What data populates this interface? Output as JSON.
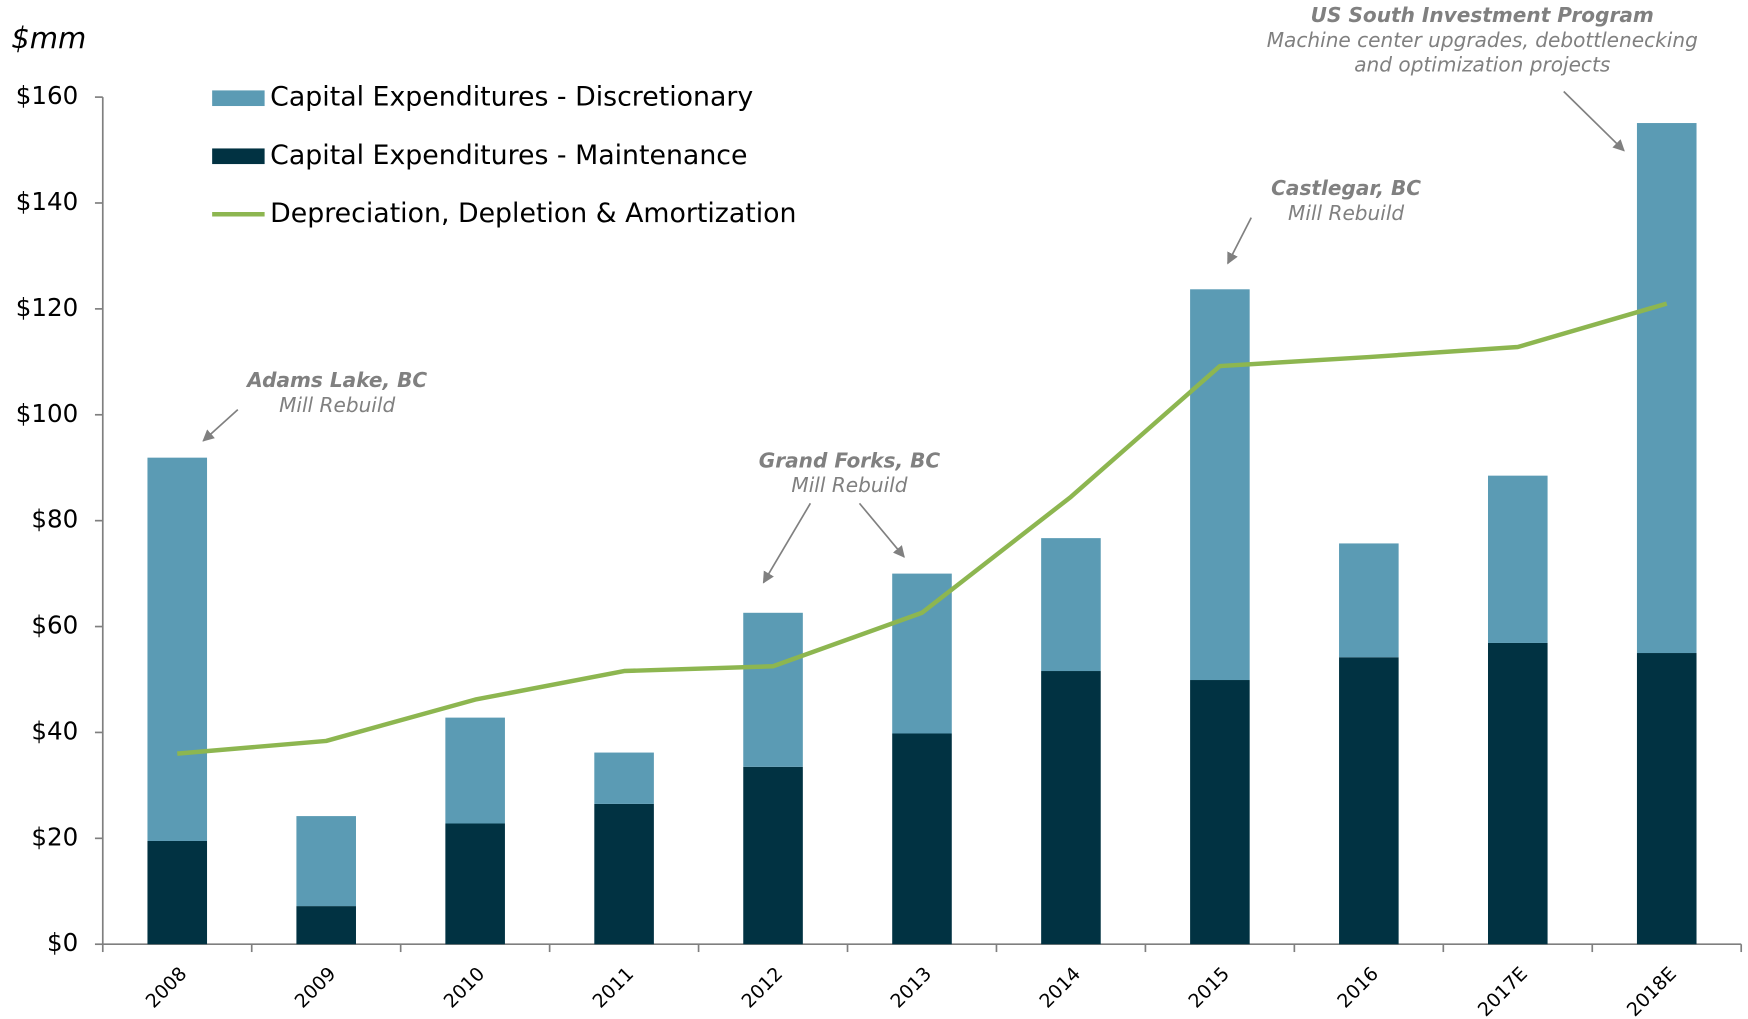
{
  "chart_data": {
    "type": "stacked_bar_line",
    "y_axis_label": "$mm",
    "categories": [
      "2008",
      "2009",
      "2010",
      "2011",
      "2012",
      "2013",
      "2014",
      "2015",
      "2016",
      "2017E",
      "2018E"
    ],
    "series": [
      {
        "name": "Capital Expenditures - Discretionary",
        "color": "#5b9bb4",
        "kind": "bar",
        "values": [
          72.4,
          17,
          20,
          9.7,
          29.1,
          30.2,
          25.1,
          73.8,
          21.5,
          31.6,
          100.1
        ]
      },
      {
        "name": "Capital Expenditures - Maintenance",
        "color": "#013242",
        "kind": "bar",
        "values": [
          19.5,
          7.2,
          22.8,
          26.5,
          33.5,
          39.8,
          51.6,
          49.9,
          54.2,
          56.9,
          55
        ]
      },
      {
        "name": "Depreciation, Depletion & Amortization",
        "color": "#8db650",
        "kind": "line",
        "values": [
          36,
          38.4,
          46.2,
          51.6,
          52.5,
          62.6,
          84.5,
          109.2,
          110.9,
          112.8,
          121
        ]
      }
    ],
    "ylim": [
      0,
      160
    ],
    "yticks": [
      {
        "value": 0,
        "label": "$0"
      },
      {
        "value": 20,
        "label": "$20"
      },
      {
        "value": 40,
        "label": "$40"
      },
      {
        "value": 60,
        "label": "$60"
      },
      {
        "value": 80,
        "label": "$80"
      },
      {
        "value": 100,
        "label": "$100"
      },
      {
        "value": 120,
        "label": "$120"
      },
      {
        "value": 140,
        "label": "$140"
      },
      {
        "value": 160,
        "label": "$160"
      }
    ],
    "legend": "top-left",
    "annotations": [
      {
        "title": "Adams Lake, BC",
        "lines": [
          "Mill Rebuild"
        ]
      },
      {
        "title": "Grand Forks, BC",
        "lines": [
          "Mill Rebuild"
        ]
      },
      {
        "title": "Castlegar, BC",
        "lines": [
          "Mill Rebuild"
        ]
      },
      {
        "title": "US South Investment Program",
        "lines": [
          "Machine center upgrades, debottlenecking",
          "and optimization projects"
        ]
      }
    ]
  }
}
